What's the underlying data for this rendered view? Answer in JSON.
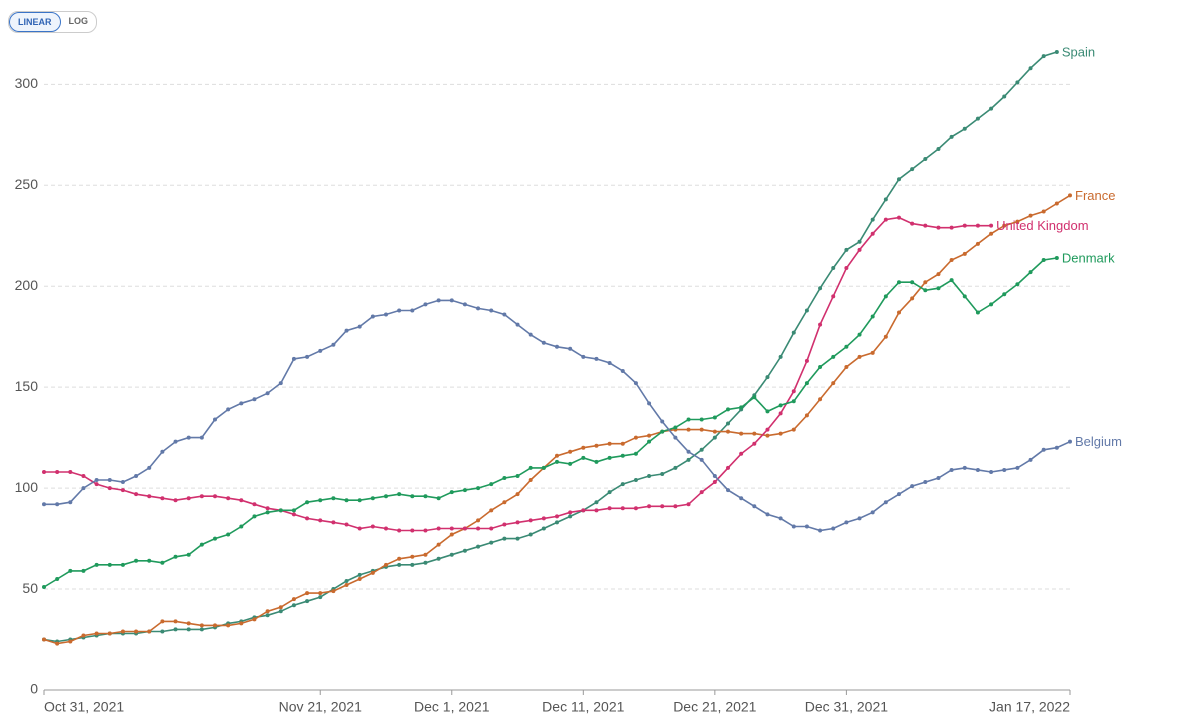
{
  "scale_buttons": [
    "LINEAR",
    "LOG"
  ],
  "chart_data": {
    "type": "line",
    "log_scale": false,
    "grid": true,
    "x": [
      "2021-10-31",
      "2021-11-01",
      "2021-11-02",
      "2021-11-03",
      "2021-11-04",
      "2021-11-05",
      "2021-11-06",
      "2021-11-07",
      "2021-11-08",
      "2021-11-09",
      "2021-11-10",
      "2021-11-11",
      "2021-11-12",
      "2021-11-13",
      "2021-11-14",
      "2021-11-15",
      "2021-11-16",
      "2021-11-17",
      "2021-11-18",
      "2021-11-19",
      "2021-11-20",
      "2021-11-21",
      "2021-11-22",
      "2021-11-23",
      "2021-11-24",
      "2021-11-25",
      "2021-11-26",
      "2021-11-27",
      "2021-11-28",
      "2021-11-29",
      "2021-11-30",
      "2021-12-01",
      "2021-12-02",
      "2021-12-03",
      "2021-12-04",
      "2021-12-05",
      "2021-12-06",
      "2021-12-07",
      "2021-12-08",
      "2021-12-09",
      "2021-12-10",
      "2021-12-11",
      "2021-12-12",
      "2021-12-13",
      "2021-12-14",
      "2021-12-15",
      "2021-12-16",
      "2021-12-17",
      "2021-12-18",
      "2021-12-19",
      "2021-12-20",
      "2021-12-21",
      "2021-12-22",
      "2021-12-23",
      "2021-12-24",
      "2021-12-25",
      "2021-12-26",
      "2021-12-27",
      "2021-12-28",
      "2021-12-29",
      "2021-12-30",
      "2021-12-31",
      "2022-01-01",
      "2022-01-02",
      "2022-01-03",
      "2022-01-04",
      "2022-01-05",
      "2022-01-06",
      "2022-01-07",
      "2022-01-08",
      "2022-01-09",
      "2022-01-10",
      "2022-01-11",
      "2022-01-12",
      "2022-01-13",
      "2022-01-14",
      "2022-01-15",
      "2022-01-16",
      "2022-01-17"
    ],
    "xlim": [
      "2021-10-31",
      "2022-01-17"
    ],
    "xticks": [
      {
        "value": "2021-10-31",
        "label": "Oct 31, 2021"
      },
      {
        "value": "2021-11-21",
        "label": "Nov 21, 2021"
      },
      {
        "value": "2021-12-01",
        "label": "Dec 1, 2021"
      },
      {
        "value": "2021-12-11",
        "label": "Dec 11, 2021"
      },
      {
        "value": "2021-12-21",
        "label": "Dec 21, 2021"
      },
      {
        "value": "2021-12-31",
        "label": "Dec 31, 2021"
      },
      {
        "value": "2022-01-17",
        "label": "Jan 17, 2022"
      }
    ],
    "ylim": [
      0,
      318
    ],
    "yticks": [
      0,
      50,
      100,
      150,
      200,
      250,
      300
    ],
    "series": [
      {
        "name": "Spain",
        "color": "#3a8a74",
        "values": [
          25,
          24,
          25,
          26,
          27,
          28,
          28,
          28,
          29,
          29,
          30,
          30,
          30,
          31,
          33,
          34,
          36,
          37,
          39,
          42,
          44,
          46,
          50,
          54,
          57,
          59,
          61,
          62,
          62,
          63,
          65,
          67,
          69,
          71,
          73,
          75,
          75,
          77,
          80,
          83,
          86,
          89,
          93,
          98,
          102,
          104,
          106,
          107,
          110,
          114,
          119,
          125,
          132,
          139,
          146,
          155,
          165,
          177,
          188,
          199,
          209,
          218,
          222,
          233,
          243,
          253,
          258,
          263,
          268,
          274,
          278,
          283,
          288,
          294,
          301,
          308,
          314,
          316,
          null
        ]
      },
      {
        "name": "France",
        "color": "#c96a2e",
        "values": [
          25,
          23,
          24,
          27,
          28,
          28,
          29,
          29,
          29,
          34,
          34,
          33,
          32,
          32,
          32,
          33,
          35,
          39,
          41,
          45,
          48,
          48,
          49,
          52,
          55,
          58,
          62,
          65,
          66,
          67,
          72,
          77,
          80,
          84,
          89,
          93,
          97,
          104,
          110,
          116,
          118,
          120,
          121,
          122,
          122,
          125,
          126,
          128,
          129,
          129,
          129,
          128,
          128,
          127,
          127,
          126,
          127,
          129,
          136,
          144,
          152,
          160,
          165,
          167,
          175,
          187,
          194,
          202,
          206,
          213,
          216,
          221,
          226,
          230,
          232,
          235,
          237,
          241,
          245
        ]
      },
      {
        "name": "United Kingdom",
        "color": "#d1306e",
        "values": [
          108,
          108,
          108,
          106,
          102,
          100,
          99,
          97,
          96,
          95,
          94,
          95,
          96,
          96,
          95,
          94,
          92,
          90,
          89,
          87,
          85,
          84,
          83,
          82,
          80,
          81,
          80,
          79,
          79,
          79,
          80,
          80,
          80,
          80,
          80,
          82,
          83,
          84,
          85,
          86,
          88,
          89,
          89,
          90,
          90,
          90,
          91,
          91,
          91,
          92,
          98,
          103,
          110,
          117,
          122,
          129,
          137,
          148,
          163,
          181,
          195,
          209,
          218,
          226,
          233,
          234,
          231,
          230,
          229,
          229,
          230,
          230,
          230,
          null,
          null,
          null,
          null,
          null,
          null
        ]
      },
      {
        "name": "Denmark",
        "color": "#1f9a5c",
        "values": [
          51,
          55,
          59,
          59,
          62,
          62,
          62,
          64,
          64,
          63,
          66,
          67,
          72,
          75,
          77,
          81,
          86,
          88,
          89,
          89,
          93,
          94,
          95,
          94,
          94,
          95,
          96,
          97,
          96,
          96,
          95,
          98,
          99,
          100,
          102,
          105,
          106,
          110,
          110,
          113,
          112,
          115,
          113,
          115,
          116,
          117,
          123,
          128,
          130,
          134,
          134,
          135,
          139,
          140,
          145,
          138,
          141,
          143,
          152,
          160,
          165,
          170,
          176,
          185,
          195,
          202,
          202,
          198,
          199,
          203,
          195,
          187,
          191,
          196,
          201,
          207,
          213,
          214,
          null
        ]
      },
      {
        "name": "Belgium",
        "color": "#6279a8",
        "values": [
          92,
          92,
          93,
          100,
          104,
          104,
          103,
          106,
          110,
          118,
          123,
          125,
          125,
          134,
          139,
          142,
          144,
          147,
          152,
          164,
          165,
          168,
          171,
          178,
          180,
          185,
          186,
          188,
          188,
          191,
          193,
          193,
          191,
          189,
          188,
          186,
          181,
          176,
          172,
          170,
          169,
          165,
          164,
          162,
          158,
          152,
          142,
          133,
          125,
          118,
          114,
          106,
          99,
          95,
          91,
          87,
          85,
          81,
          81,
          79,
          80,
          83,
          85,
          88,
          93,
          97,
          101,
          103,
          105,
          109,
          110,
          109,
          108,
          109,
          110,
          114,
          119,
          120,
          123
        ]
      }
    ]
  }
}
